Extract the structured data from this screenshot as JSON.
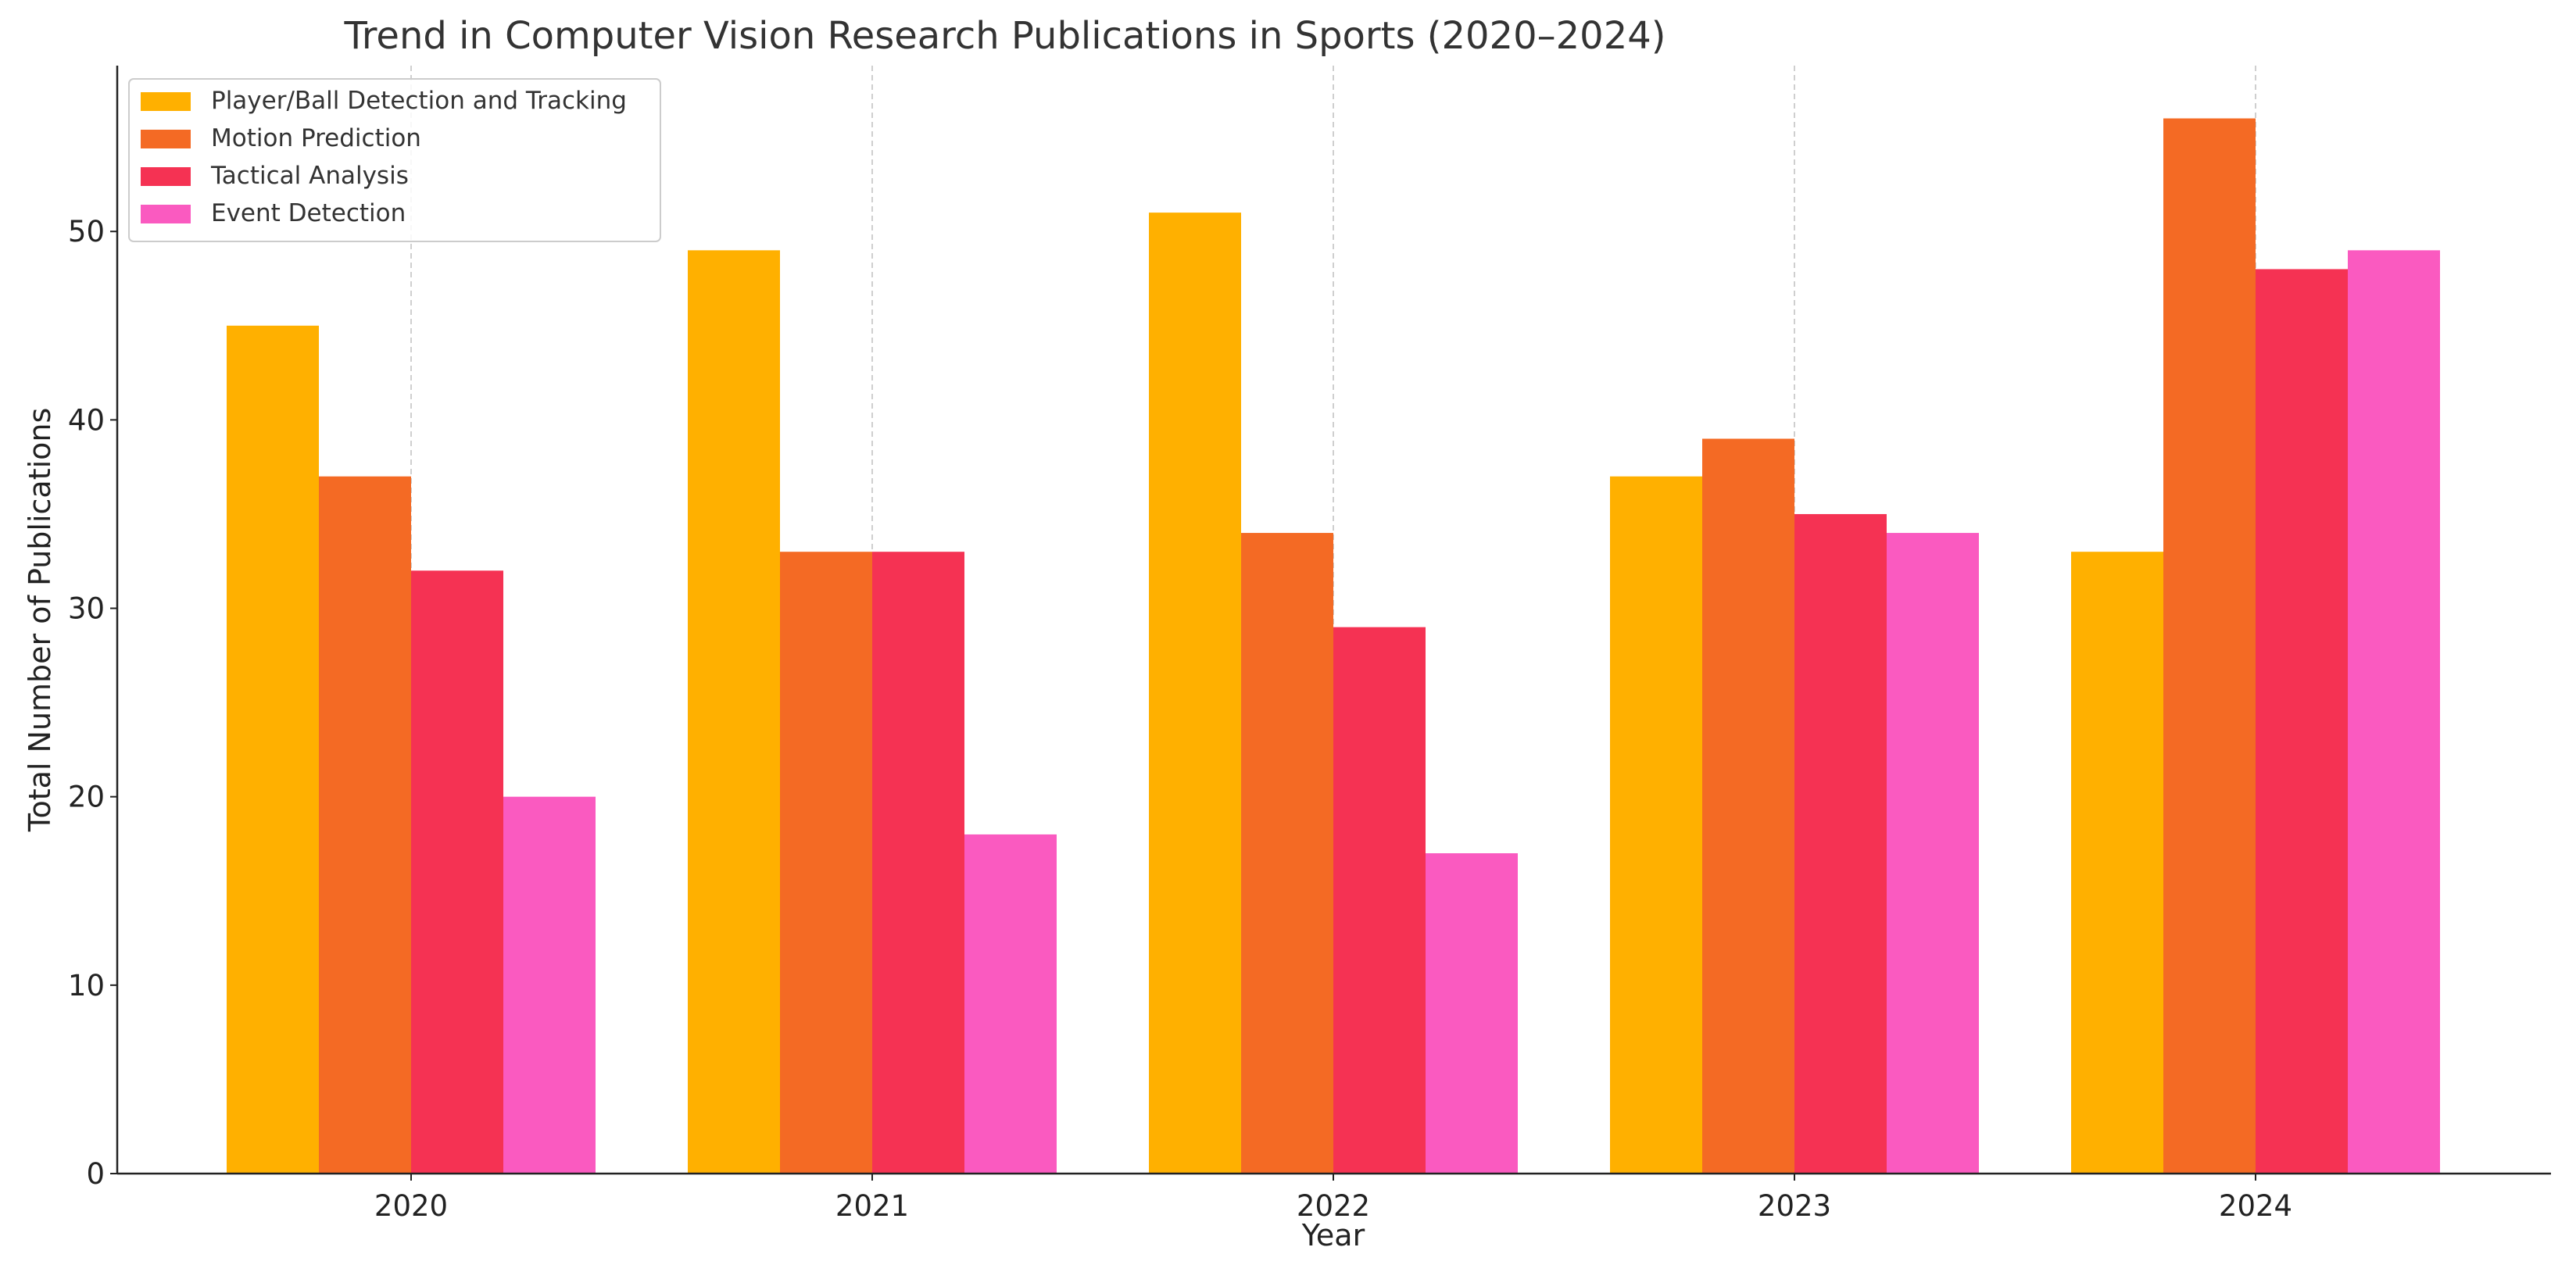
{
  "chart_data": {
    "type": "bar",
    "title": "Trend in Computer Vision Research Publications in Sports (2020–2024)",
    "xlabel": "Year",
    "ylabel": "Total Number of Publications",
    "categories": [
      "2020",
      "2021",
      "2022",
      "2023",
      "2024"
    ],
    "series": [
      {
        "name": "Player/Ball Detection and Tracking",
        "color": "#FFB000",
        "values": [
          45,
          49,
          51,
          37,
          33
        ]
      },
      {
        "name": "Motion Prediction",
        "color": "#F46A24",
        "values": [
          37,
          33,
          34,
          39,
          56
        ]
      },
      {
        "name": "Tactical Analysis",
        "color": "#F53253",
        "values": [
          32,
          33,
          29,
          35,
          48
        ]
      },
      {
        "name": "Event Detection",
        "color": "#FA5AC0",
        "values": [
          20,
          18,
          17,
          34,
          49
        ]
      }
    ],
    "ylim": [
      0,
      58.8
    ],
    "yticks": [
      0,
      10,
      20,
      30,
      40,
      50
    ],
    "grid": "vertical-dashed",
    "legend_position": "top-left"
  }
}
